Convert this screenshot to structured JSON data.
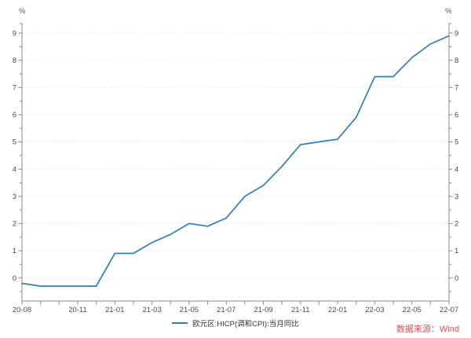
{
  "chart": {
    "unit": "%",
    "source": "数据来源：Wind"
  },
  "chart_data": {
    "type": "line",
    "title": "",
    "xlabel": "",
    "ylabel": "%",
    "x": [
      "20-08",
      "20-09",
      "20-10",
      "20-11",
      "20-12",
      "21-01",
      "21-02",
      "21-03",
      "21-04",
      "21-05",
      "21-06",
      "21-07",
      "21-08",
      "21-09",
      "21-10",
      "21-11",
      "21-12",
      "22-01",
      "22-02",
      "22-03",
      "22-04",
      "22-05",
      "22-06",
      "22-07"
    ],
    "series": [
      {
        "name": "欧元区:HICP(调和CPI):当月同比",
        "color": "#2f7fb2",
        "values": [
          -0.2,
          -0.3,
          -0.3,
          -0.3,
          -0.3,
          0.9,
          0.9,
          1.3,
          1.6,
          2.0,
          1.9,
          2.2,
          3.0,
          3.4,
          4.1,
          4.9,
          5.0,
          5.1,
          5.9,
          7.4,
          7.4,
          8.1,
          8.6,
          8.9
        ]
      }
    ],
    "x_tick_labels": [
      "20-08",
      "20-11",
      "21-01",
      "21-03",
      "21-05",
      "21-07",
      "21-09",
      "21-11",
      "22-01",
      "22-03",
      "22-05",
      "22-07"
    ],
    "x_labeled_indices": [
      0,
      3,
      5,
      7,
      9,
      11,
      13,
      15,
      17,
      19,
      21,
      23
    ],
    "yticks": [
      0,
      1,
      2,
      3,
      4,
      5,
      6,
      7,
      8,
      9
    ],
    "ylim": [
      -0.85,
      9.35
    ],
    "grid": "horizontal-dotted",
    "legend_position": "bottom-center",
    "colors": {
      "line": "#2f7fb2",
      "grid": "#e3e3e3",
      "axis": "#8a8a8a",
      "tick_label": "#4a4a4a",
      "legend_text": "#333333",
      "source_text": "#e64c4c",
      "background": "#ffffff"
    }
  }
}
